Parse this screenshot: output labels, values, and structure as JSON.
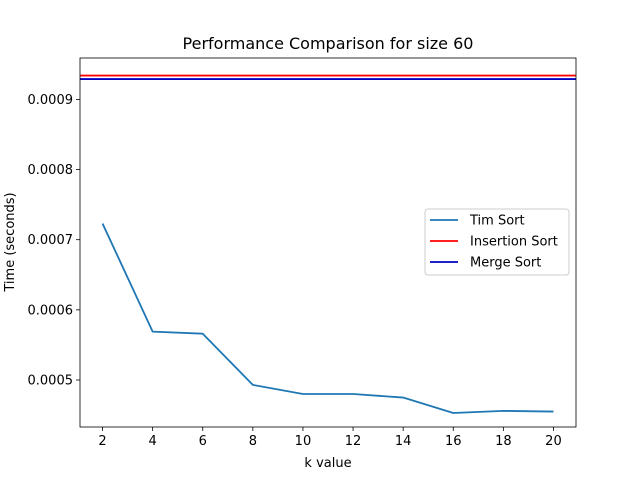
{
  "chart_data": {
    "type": "line",
    "title": "Performance Comparison for size 60",
    "xlabel": "k value",
    "ylabel": "Time (seconds)",
    "x": [
      2,
      4,
      6,
      8,
      10,
      12,
      14,
      16,
      18,
      20
    ],
    "xlim": [
      1.1,
      20.9
    ],
    "ylim": [
      0.000433,
      0.000959
    ],
    "xticks": [
      2,
      4,
      6,
      8,
      10,
      12,
      14,
      16,
      18,
      20
    ],
    "yticks": [
      0.0005,
      0.0006,
      0.0007,
      0.0008,
      0.0009
    ],
    "ytick_labels": [
      "0.0005",
      "0.0006",
      "0.0007",
      "0.0008",
      "0.0009"
    ],
    "grid": false,
    "legend_position": "center-right",
    "series": [
      {
        "name": "Tim Sort",
        "color": "#1f77b4",
        "kind": "line",
        "values": [
          0.000723,
          0.000569,
          0.000566,
          0.000493,
          0.00048,
          0.00048,
          0.000475,
          0.000453,
          0.000456,
          0.000455
        ]
      },
      {
        "name": "Insertion Sort",
        "color": "#ff0000",
        "kind": "hline",
        "value": 0.000934
      },
      {
        "name": "Merge Sort",
        "color": "#0000bf",
        "kind": "hline",
        "value": 0.000929
      }
    ]
  }
}
